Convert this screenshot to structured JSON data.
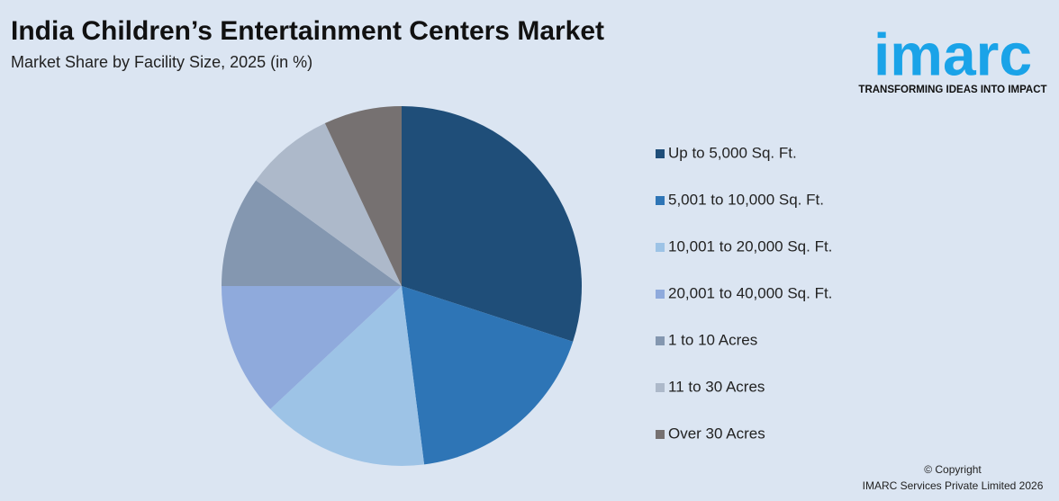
{
  "chart_data": {
    "type": "pie",
    "title": "India Children’s Entertainment Centers Market",
    "subtitle": "Market Share by Facility Size, 2025 (in %)",
    "categories": [
      "Up to 5,000 Sq. Ft.",
      "5,001 to 10,000 Sq. Ft.",
      "10,001 to 20,000 Sq. Ft.",
      "20,001 to 40,000 Sq. Ft.",
      "1 to 10 Acres",
      "11 to 30 Acres",
      "Over 30 Acres"
    ],
    "values": [
      30,
      18,
      15,
      12,
      10,
      8,
      7
    ],
    "colors": [
      "#1f4e79",
      "#2e75b6",
      "#9dc3e6",
      "#8faadc",
      "#8497b0",
      "#adb9ca",
      "#767171"
    ],
    "legend": "right"
  },
  "logo": {
    "text": "imarc",
    "tagline": "TRANSFORMING IDEAS INTO IMPACT"
  },
  "copyright": [
    "© Copyright",
    "IMARC Services Private Limited 2026"
  ]
}
